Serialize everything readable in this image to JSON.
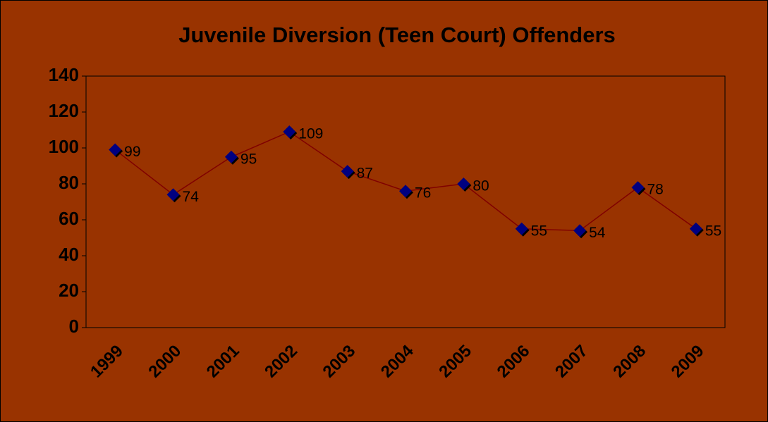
{
  "chart_data": {
    "type": "line",
    "title": "Juvenile Diversion (Teen Court) Offenders",
    "categories": [
      "1999",
      "2000",
      "2001",
      "2002",
      "2003",
      "2004",
      "2005",
      "2006",
      "2007",
      "2008",
      "2009"
    ],
    "values": [
      99,
      74,
      95,
      109,
      87,
      76,
      80,
      55,
      54,
      78,
      55
    ],
    "color": "#000080",
    "line_color": "#800000",
    "background": "#993300",
    "ylim": [
      0,
      140
    ],
    "yticks": [
      0,
      20,
      40,
      60,
      80,
      100,
      120,
      140
    ]
  }
}
